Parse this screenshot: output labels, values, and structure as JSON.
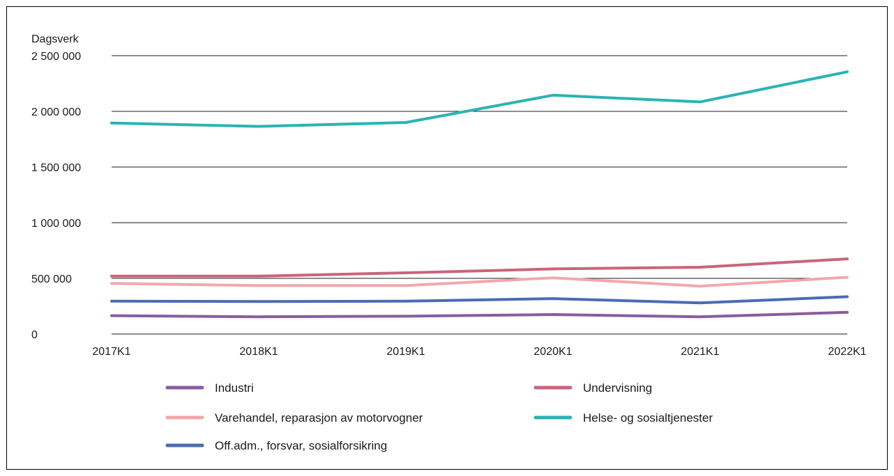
{
  "chart_data": {
    "type": "line",
    "title": "",
    "ylabel": "Dagsverk",
    "xlabel": "",
    "categories": [
      "2017K1",
      "2018K1",
      "2019K1",
      "2020K1",
      "2021K1",
      "2022K1"
    ],
    "ylim": [
      0,
      2500000
    ],
    "yticks": [
      {
        "value": 0,
        "label": "0"
      },
      {
        "value": 500000,
        "label": "500 000"
      },
      {
        "value": 1000000,
        "label": "1 000 000"
      },
      {
        "value": 1500000,
        "label": "1 500 000"
      },
      {
        "value": 2000000,
        "label": "2 000 000"
      },
      {
        "value": 2500000,
        "label": "2 500 000"
      }
    ],
    "grid": true,
    "legend_position": "bottom",
    "series": [
      {
        "name": "Industri",
        "color": "#8a5c9e",
        "values": [
          165000,
          155000,
          160000,
          175000,
          155000,
          195000
        ]
      },
      {
        "name": "Undervisning",
        "color": "#c9657a",
        "values": [
          520000,
          520000,
          550000,
          585000,
          600000,
          675000
        ]
      },
      {
        "name": "Varehandel, reparasjon av motorvogner",
        "color": "#f2a8ab",
        "values": [
          455000,
          435000,
          435000,
          505000,
          430000,
          510000
        ]
      },
      {
        "name": "Helse- og sosialtjenester",
        "color": "#2bb3b3",
        "values": [
          1895000,
          1865000,
          1900000,
          2145000,
          2085000,
          2355000
        ]
      },
      {
        "name": "Off.adm., forsvar, sosialforsikring",
        "color": "#4a6cb3",
        "values": [
          295000,
          292000,
          295000,
          318000,
          280000,
          335000
        ]
      }
    ]
  }
}
